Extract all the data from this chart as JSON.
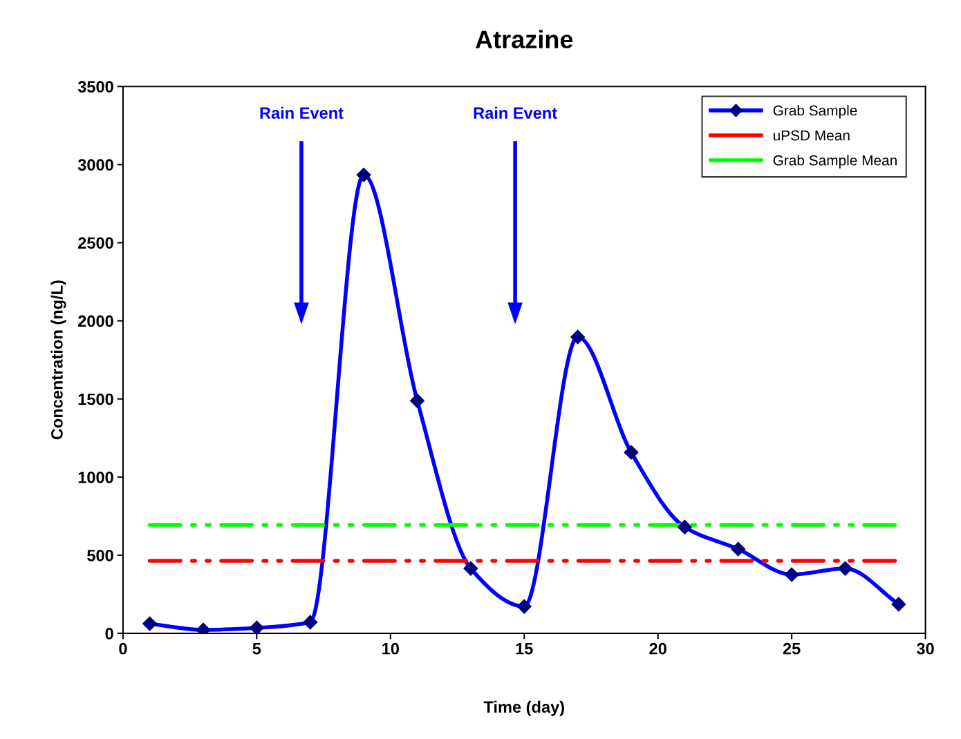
{
  "chart_data": {
    "type": "line",
    "title": "Atrazine",
    "xlabel": "Time (day)",
    "ylabel": "Concentration (ng/L)",
    "xlim": [
      0,
      30
    ],
    "xticks": [
      0,
      5,
      10,
      15,
      20,
      25,
      30
    ],
    "ylim": [
      0,
      3500
    ],
    "yticks": [
      0,
      500,
      1000,
      1500,
      2000,
      2500,
      3000,
      3500
    ],
    "grid": false,
    "legend": "top right",
    "series": [
      {
        "name": "Grab Sample",
        "color": "#0000ff",
        "marker": "diamond",
        "line_style": "solid",
        "x": [
          1,
          3,
          5,
          7,
          9,
          11,
          13,
          15,
          17,
          19,
          21,
          23,
          25,
          27,
          29
        ],
        "values": [
          62,
          22,
          35,
          71,
          2934,
          1489,
          415,
          172,
          1896,
          1158,
          680,
          539,
          376,
          415,
          186
        ]
      },
      {
        "name": "uPSD Mean",
        "color": "#ff0000",
        "marker": "none",
        "line_style": "dashed",
        "x": [
          1,
          29
        ],
        "values": [
          464,
          464
        ]
      },
      {
        "name": "Grab Sample Mean",
        "color": "#00ff00",
        "marker": "none",
        "line_style": "dashed",
        "x": [
          1,
          29
        ],
        "values": [
          694,
          694
        ]
      }
    ],
    "ref_lines": [
      {
        "axis": "x",
        "value": 6.67,
        "label": "Rain Event",
        "color": "#0000ff"
      },
      {
        "axis": "x",
        "value": 14.66,
        "label": "Rain Event",
        "color": "#0000ff"
      }
    ]
  }
}
